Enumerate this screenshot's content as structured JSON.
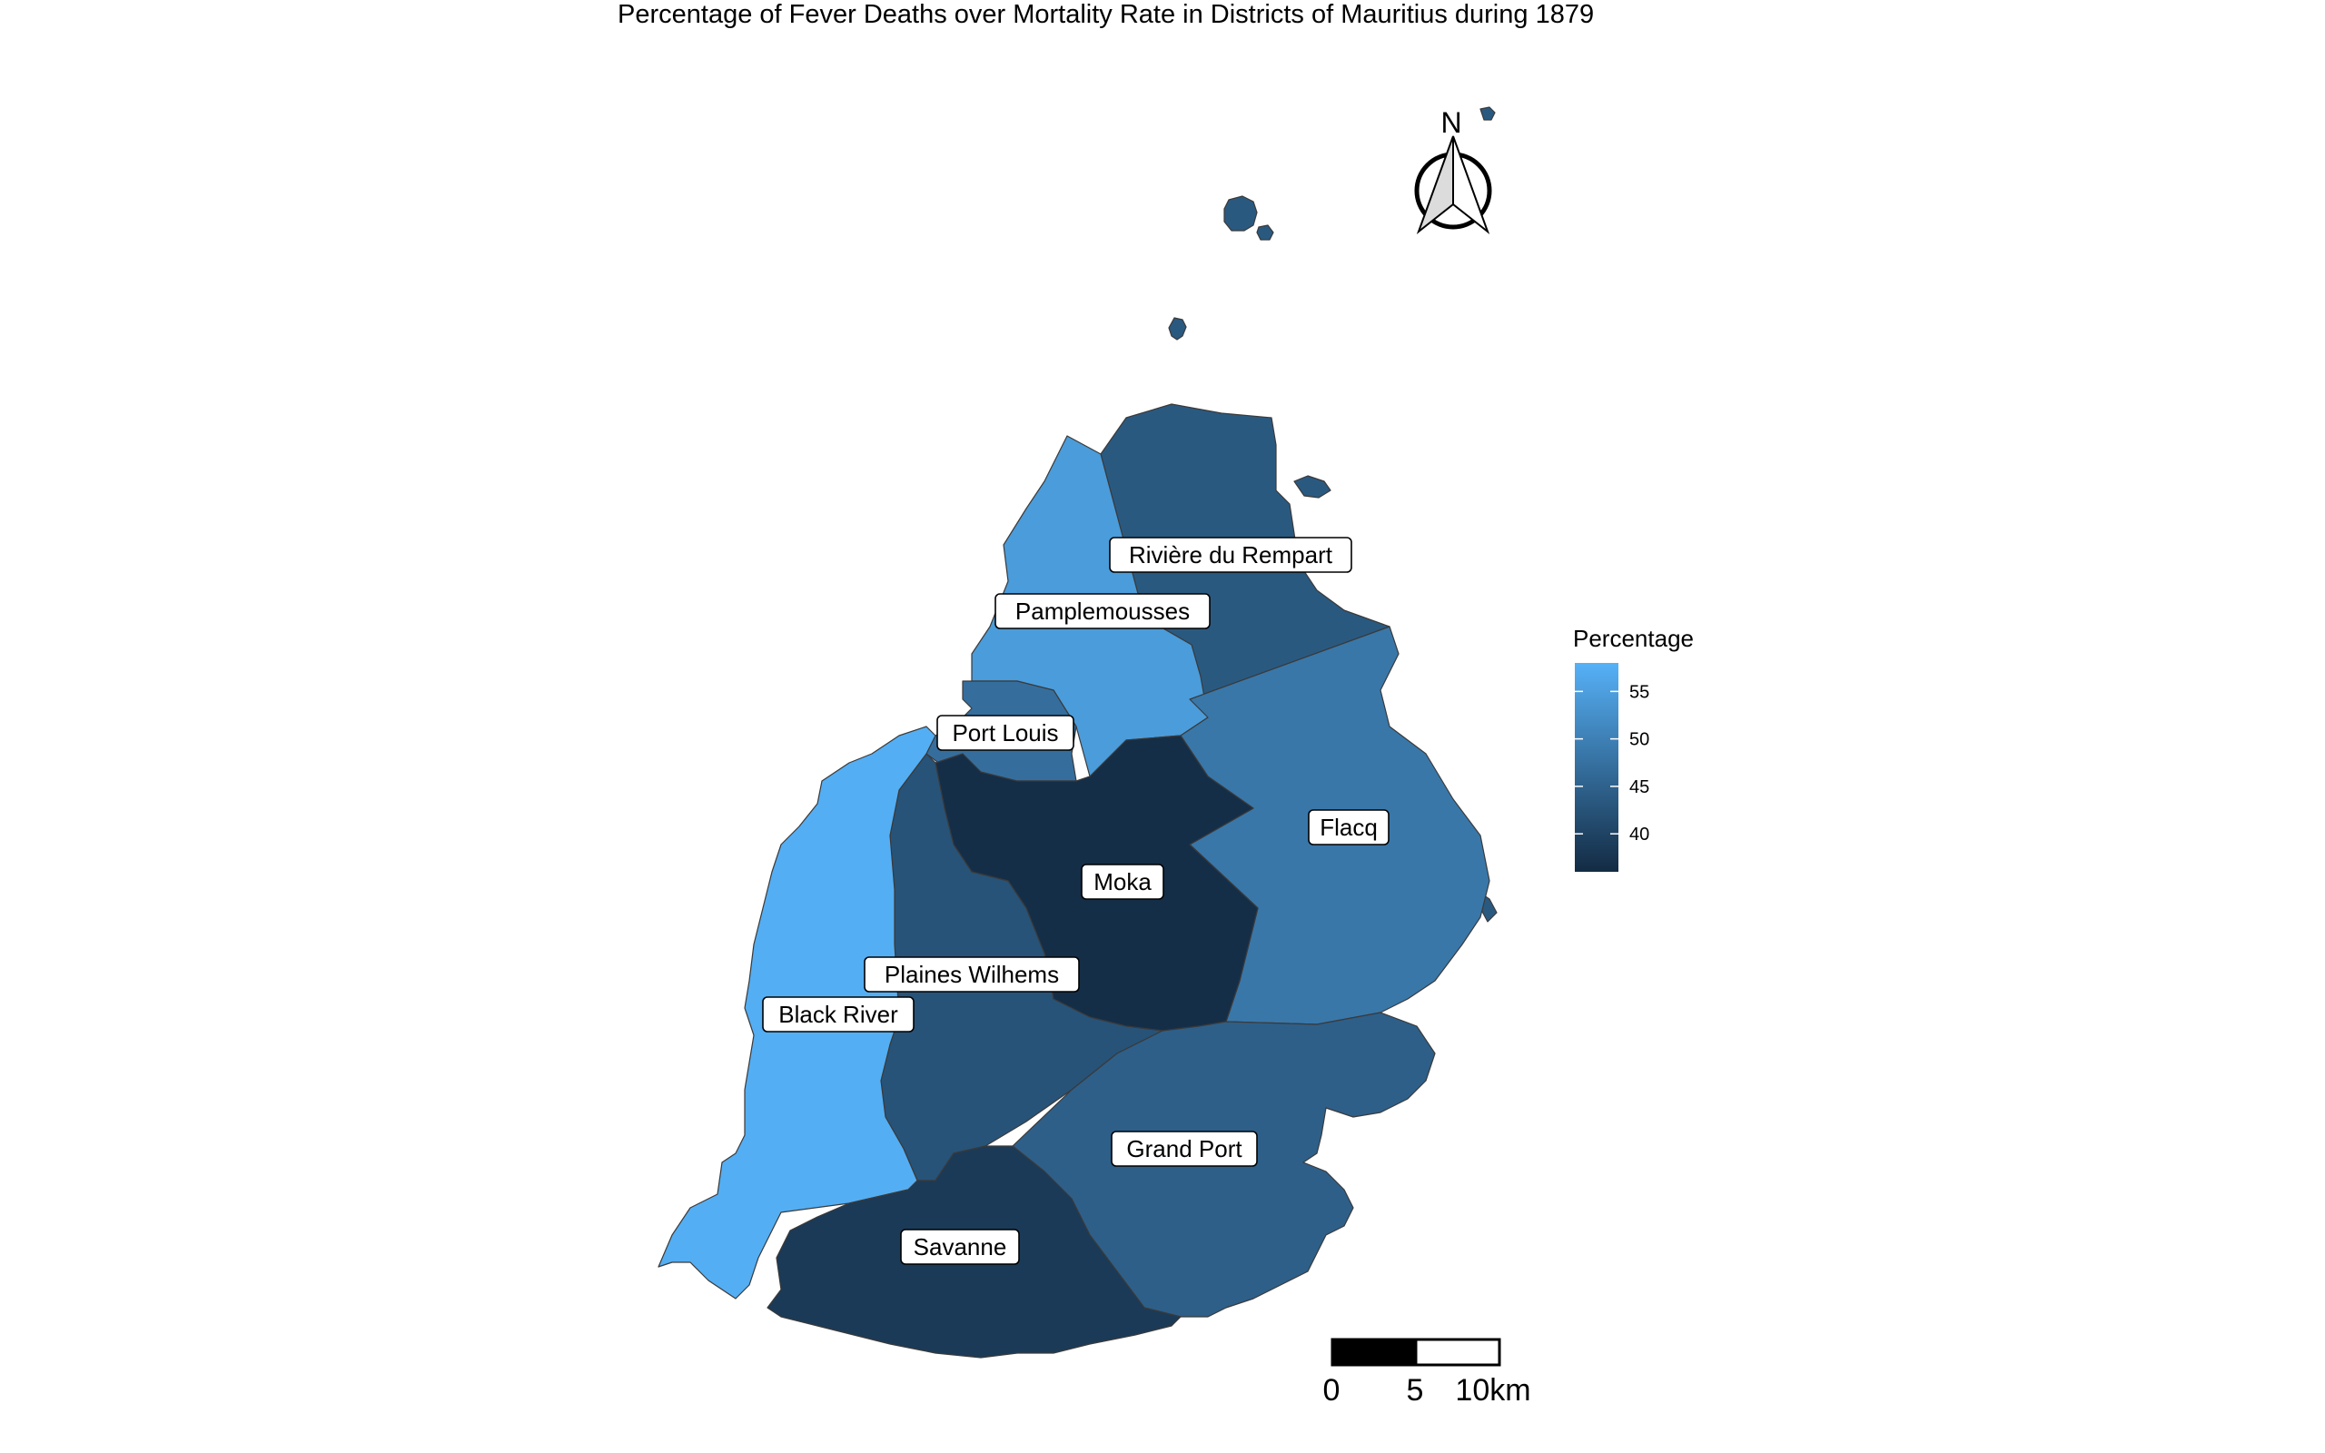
{
  "title": "Percentage of Fever Deaths over Mortality Rate in Districts of Mauritius during 1879",
  "legend": {
    "title": "Percentage",
    "min": 36,
    "max": 58,
    "ticks": [
      {
        "value": 55,
        "label": "55"
      },
      {
        "value": 50,
        "label": "50"
      },
      {
        "value": 45,
        "label": "45"
      },
      {
        "value": 40,
        "label": "40"
      }
    ],
    "color_low": "#132B43",
    "color_high": "#56B1F7"
  },
  "districts": [
    {
      "name": "Rivière du Rempart",
      "value": 43.5
    },
    {
      "name": "Pamplemousses",
      "value": 54.5
    },
    {
      "name": "Port Louis",
      "value": 47
    },
    {
      "name": "Flacq",
      "value": 48.5
    },
    {
      "name": "Moka",
      "value": 36.5
    },
    {
      "name": "Plaines Wilhems",
      "value": 42.5
    },
    {
      "name": "Black River",
      "value": 57.5
    },
    {
      "name": "Grand Port",
      "value": 44.5
    },
    {
      "name": "Savanne",
      "value": 38.5
    }
  ],
  "islets_value": 43.5,
  "north_arrow": {
    "label": "N"
  },
  "scale_bar": {
    "labels": [
      "0",
      "5",
      "10km"
    ]
  }
}
